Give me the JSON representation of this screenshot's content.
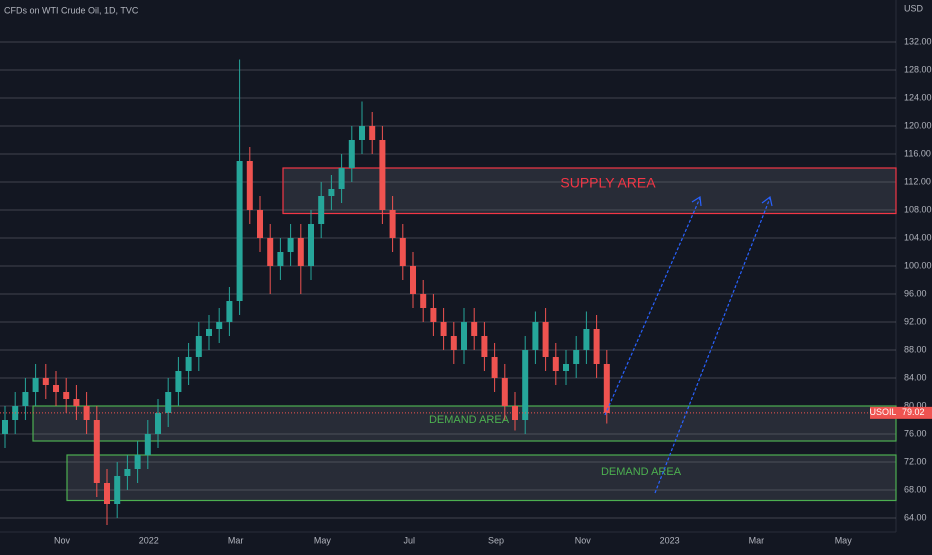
{
  "chart_data": {
    "type": "candlestick",
    "title": "CFDs on WTI Crude Oil, 1D, TVC",
    "y_axis_label": "USD",
    "up_color": "#26a69a",
    "down_color": "#ef5350",
    "grid": true,
    "ylim": [
      62,
      138
    ],
    "yticks": [
      {
        "value": 64,
        "label": "64.00"
      },
      {
        "value": 68,
        "label": "68.00"
      },
      {
        "value": 72,
        "label": "72.00"
      },
      {
        "value": 76,
        "label": "76.00"
      },
      {
        "value": 80,
        "label": "80.00"
      },
      {
        "value": 84,
        "label": "84.00"
      },
      {
        "value": 88,
        "label": "88.00"
      },
      {
        "value": 92,
        "label": "92.00"
      },
      {
        "value": 96,
        "label": "96.00"
      },
      {
        "value": 100,
        "label": "100.00"
      },
      {
        "value": 104,
        "label": "104.00"
      },
      {
        "value": 108,
        "label": "108.00"
      },
      {
        "value": 112,
        "label": "112.00"
      },
      {
        "value": 116,
        "label": "116.00"
      },
      {
        "value": 120,
        "label": "120.00"
      },
      {
        "value": 124,
        "label": "124.00"
      },
      {
        "value": 128,
        "label": "128.00"
      },
      {
        "value": 132,
        "label": "132.00"
      }
    ],
    "xtick_labels": [
      "Nov",
      "2022",
      "Mar",
      "May",
      "Jul",
      "Sep",
      "Nov",
      "2023",
      "Mar",
      "May"
    ],
    "open": [
      76,
      78,
      80,
      82,
      84,
      83,
      82,
      81,
      80,
      78,
      69,
      66,
      70,
      71,
      73,
      76,
      79,
      82,
      85,
      87,
      90,
      91,
      92,
      95,
      115,
      108,
      104,
      100,
      102,
      104,
      100,
      106,
      110,
      111,
      114,
      118,
      120,
      118,
      108,
      104,
      100,
      96,
      94,
      92,
      90,
      88,
      92,
      90,
      87,
      84,
      80,
      78,
      88,
      92,
      87,
      85,
      86,
      88,
      91,
      86
    ],
    "high": [
      80,
      82,
      84,
      86,
      86,
      85,
      84,
      83,
      82,
      80,
      71,
      72,
      73,
      75,
      78,
      81,
      84,
      87,
      89,
      92,
      93,
      94,
      97,
      129.5,
      117,
      110,
      106,
      104,
      106,
      106,
      108,
      112,
      113,
      116,
      120,
      123.5,
      122,
      120,
      110,
      106,
      102,
      98,
      96,
      94,
      92,
      94,
      94,
      92,
      89,
      86,
      82,
      90,
      93.5,
      94,
      89,
      88,
      90,
      93.5,
      93,
      88
    ],
    "low": [
      74,
      76,
      78,
      80,
      81,
      80,
      79,
      78,
      76,
      67,
      63,
      64,
      68,
      69,
      71,
      74,
      77,
      80,
      83,
      85,
      88,
      89,
      90,
      93,
      106,
      102,
      96,
      98,
      100,
      96,
      98,
      104,
      108,
      109,
      112,
      116,
      116,
      106,
      102,
      98,
      94,
      92,
      90,
      88,
      86,
      86,
      88,
      85,
      82,
      78,
      76.5,
      76,
      86,
      85,
      83,
      83,
      84,
      86,
      84,
      77.5
    ],
    "close": [
      78,
      80,
      82,
      84,
      83,
      82,
      81,
      80,
      78,
      69,
      66,
      70,
      71,
      73,
      76,
      79,
      82,
      85,
      87,
      90,
      91,
      92,
      95,
      115,
      108,
      104,
      100,
      102,
      104,
      100,
      106,
      110,
      111,
      114,
      118,
      120,
      118,
      108,
      104,
      100,
      96,
      94,
      92,
      90,
      88,
      92,
      90,
      87,
      84,
      80,
      78,
      88,
      92,
      87,
      85,
      86,
      88,
      91,
      86,
      79
    ],
    "symbol": "USOIL",
    "last_price": 79.02,
    "last_price_label": "79.02",
    "zones": [
      {
        "label": "SUPPLY AREA",
        "low": 107.5,
        "high": 114,
        "color": "#f23645"
      },
      {
        "label": "DEMAND AREA",
        "low": 75,
        "high": 80,
        "color": "#4caf50"
      },
      {
        "label": "DEMAND AREA",
        "low": 66.5,
        "high": 73,
        "color": "#4caf50"
      }
    ]
  }
}
